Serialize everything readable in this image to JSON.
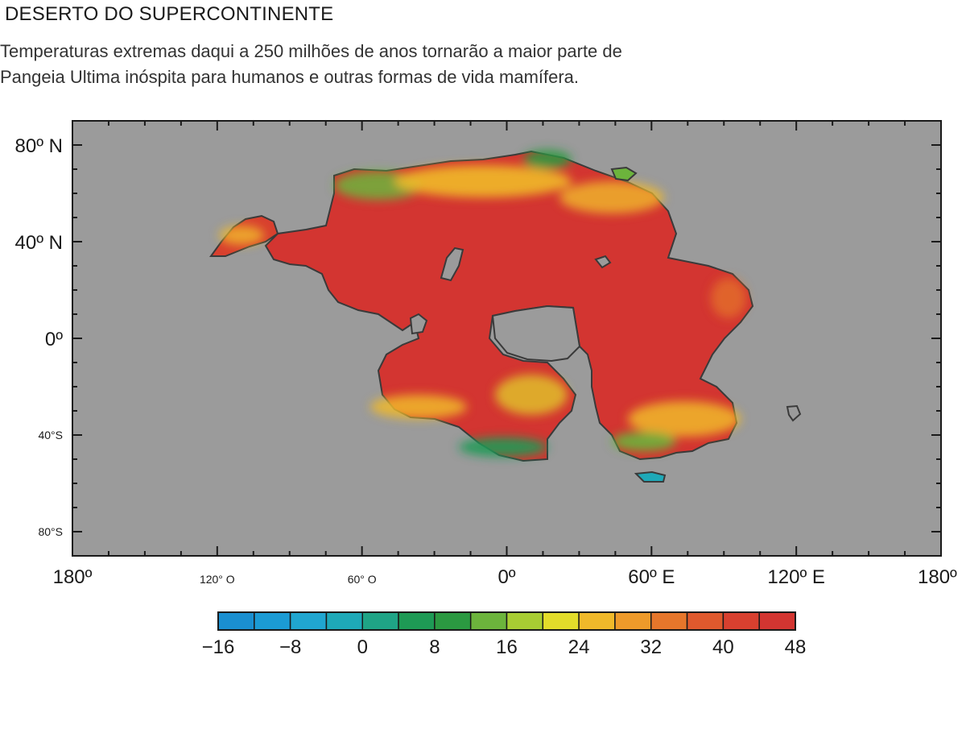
{
  "header": {
    "title": "DESERTO  DO SUPERCONTINENTE",
    "subtitle_line1": "Temperaturas extremas daqui a 250 milhões de anos tornarão a maior parte de",
    "subtitle_line2": "Pangeia Ultima inóspita para humanos e outras formas de vida mamífera."
  },
  "map": {
    "background_color": "#9b9b9b",
    "lat_labels": [
      {
        "text": "80º N",
        "lat": 80,
        "size": "big"
      },
      {
        "text": "40º N",
        "lat": 40,
        "size": "big"
      },
      {
        "text": "0º",
        "lat": 0,
        "size": "big"
      },
      {
        "text": "40°S",
        "lat": -40,
        "size": "small"
      },
      {
        "text": "80°S",
        "lat": -80,
        "size": "small"
      }
    ],
    "lon_labels": [
      {
        "text": "180º",
        "lon": -180,
        "size": "big"
      },
      {
        "text": "120° O",
        "lon": -120,
        "size": "small"
      },
      {
        "text": "60° O",
        "lon": -60,
        "size": "small"
      },
      {
        "text": "0º",
        "lon": 0,
        "size": "big"
      },
      {
        "text": "60º E",
        "lon": 60,
        "size": "big"
      },
      {
        "text": "120º E",
        "lon": 120,
        "size": "big"
      },
      {
        "text": "180º",
        "lon": 180,
        "size": "big"
      }
    ]
  },
  "colorbar": {
    "colors": [
      "#1a8fd0",
      "#1b9bd4",
      "#20a6d0",
      "#1ea9b8",
      "#1fa486",
      "#1e9a55",
      "#2b9941",
      "#6cb43c",
      "#a8cd33",
      "#e3dc2a",
      "#f0b92a",
      "#ee9a2a",
      "#e6762b",
      "#df592d",
      "#d8402f",
      "#d33531"
    ],
    "tick_labels": [
      "−16",
      "−8",
      "0",
      "8",
      "16",
      "24",
      "32",
      "40",
      "48"
    ]
  }
}
